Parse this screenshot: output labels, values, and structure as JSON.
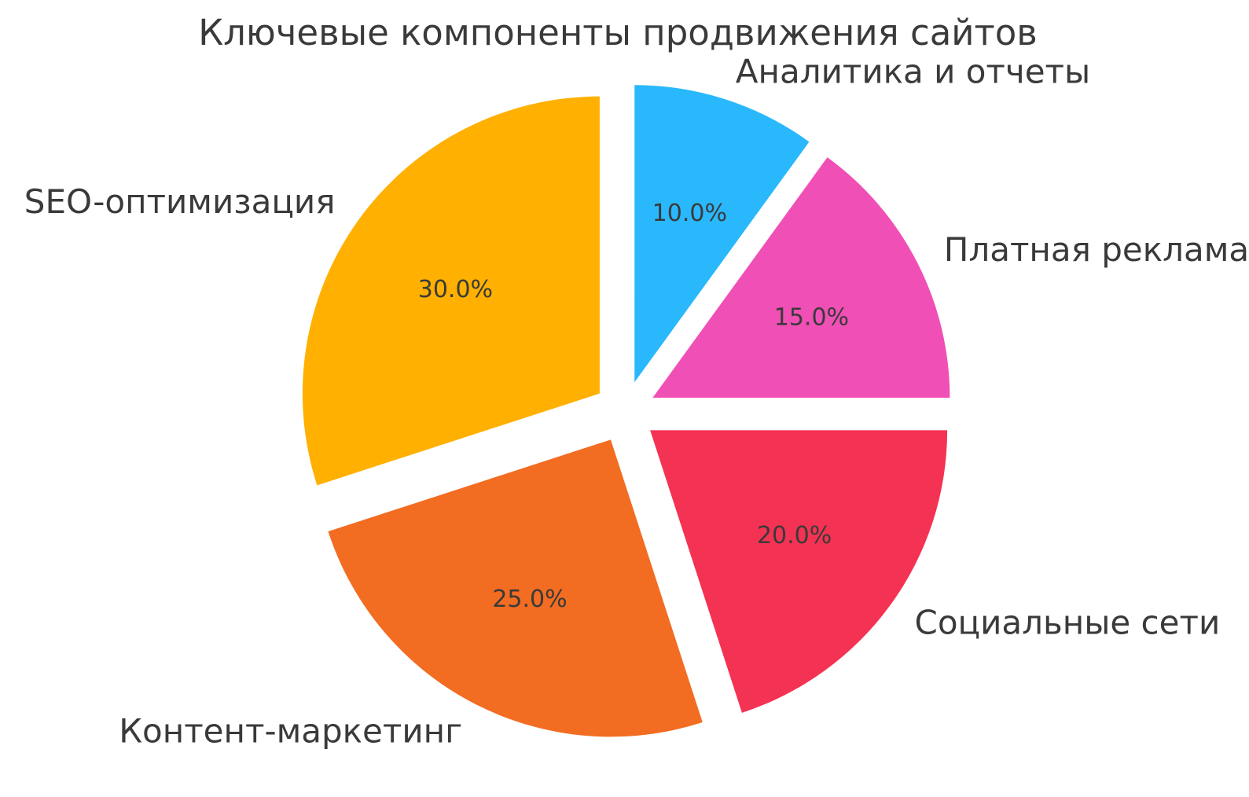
{
  "chart_data": {
    "type": "pie",
    "title": "Ключевые компоненты продвижения сайтов",
    "labels": [
      "Аналитика и отчеты",
      "Платная реклама",
      "Социальные сети",
      "Контент-маркетинг",
      "SEO-оптимизация"
    ],
    "values": [
      10,
      15,
      20,
      25,
      30
    ],
    "pct_labels": [
      "10.0%",
      "15.0%",
      "20.0%",
      "25.0%",
      "30.0%"
    ],
    "colors": [
      "#2AB8FC",
      "#F04FB6",
      "#F43253",
      "#F26C21",
      "#FFB000"
    ],
    "start_angle": 90,
    "clockwise": true,
    "explode": 0.105,
    "label_distance": 1.1,
    "pct_distance": 0.6,
    "legend": "none",
    "text_color": "#3a3a3a",
    "background_color": "#ffffff"
  }
}
